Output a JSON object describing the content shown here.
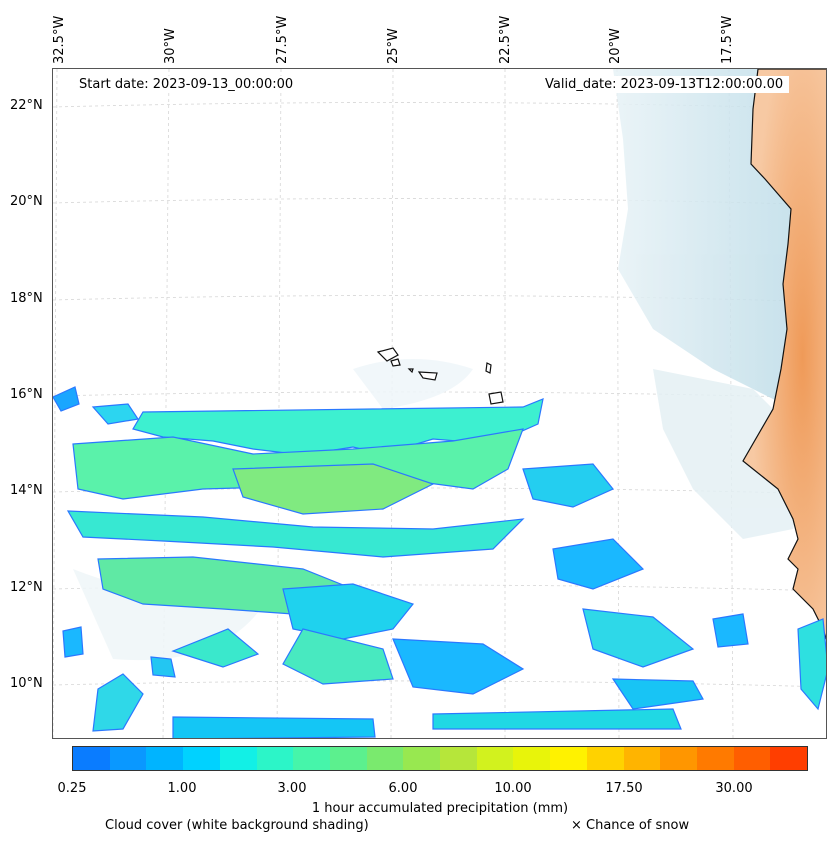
{
  "map": {
    "lon_labels": [
      "32.5°W",
      "30°W",
      "27.5°W",
      "25°W",
      "22.5°W",
      "20°W",
      "17.5°W"
    ],
    "lat_labels": [
      "22°N",
      "20°N",
      "18°N",
      "16°N",
      "14°N",
      "12°N",
      "10°N"
    ],
    "start_date": "Start date: 2023-09-13_00:00:00",
    "valid_date": "Valid_date: 2023-09-13T12:00:00.00"
  },
  "colorbar": {
    "tick_labels": [
      "0.25",
      "1.00",
      "3.00",
      "6.00",
      "10.00",
      "17.50",
      "30.00"
    ],
    "title": "1 hour accumulated precipitation (mm)",
    "colors": [
      "#0a7cff",
      "#0a98ff",
      "#00b4ff",
      "#00d2ff",
      "#12f0e6",
      "#2cf5c8",
      "#46f5aa",
      "#5cf08e",
      "#7aea6e",
      "#98e850",
      "#b6e63a",
      "#d2f21e",
      "#e8f40a",
      "#fff200",
      "#ffd200",
      "#ffb400",
      "#ff9600",
      "#ff7a00",
      "#ff5e00",
      "#ff3e00"
    ]
  },
  "legend": {
    "cloud_note": "Cloud cover (white background shading)",
    "snow_note": "× Chance of snow"
  }
}
